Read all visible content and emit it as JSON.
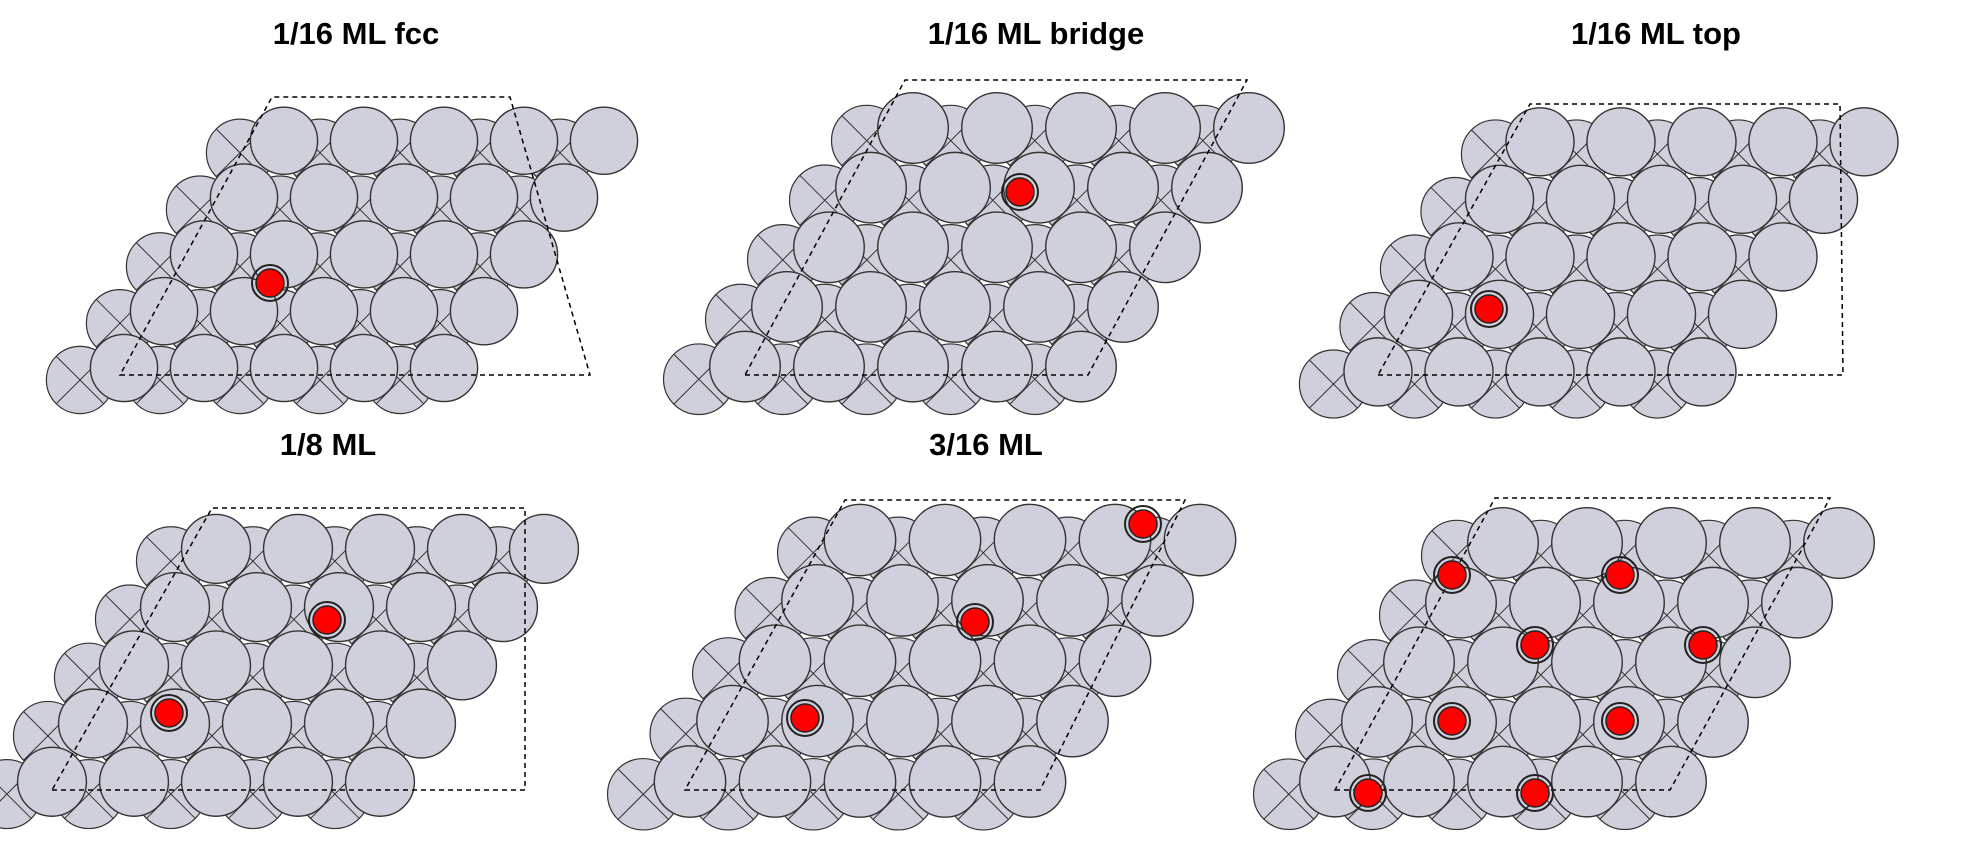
{
  "figure": {
    "colors": {
      "atom_fill": "#cfd0dc",
      "atom_stroke": "#333333",
      "adsorbate_fill": "#ff0000",
      "adsorbate_stroke": "#222222",
      "cell_outline": "#000000"
    },
    "panels": [
      {
        "id": "fcc",
        "title": "1/16 ML fcc"
      },
      {
        "id": "bridge",
        "title": "1/16 ML bridge"
      },
      {
        "id": "top",
        "title": "1/16 ML top"
      },
      {
        "id": "eighth",
        "title": "1/8 ML"
      },
      {
        "id": "threesixteenth",
        "title": "3/16 ML"
      },
      {
        "id": "quarter",
        "title": ""
      }
    ]
  }
}
